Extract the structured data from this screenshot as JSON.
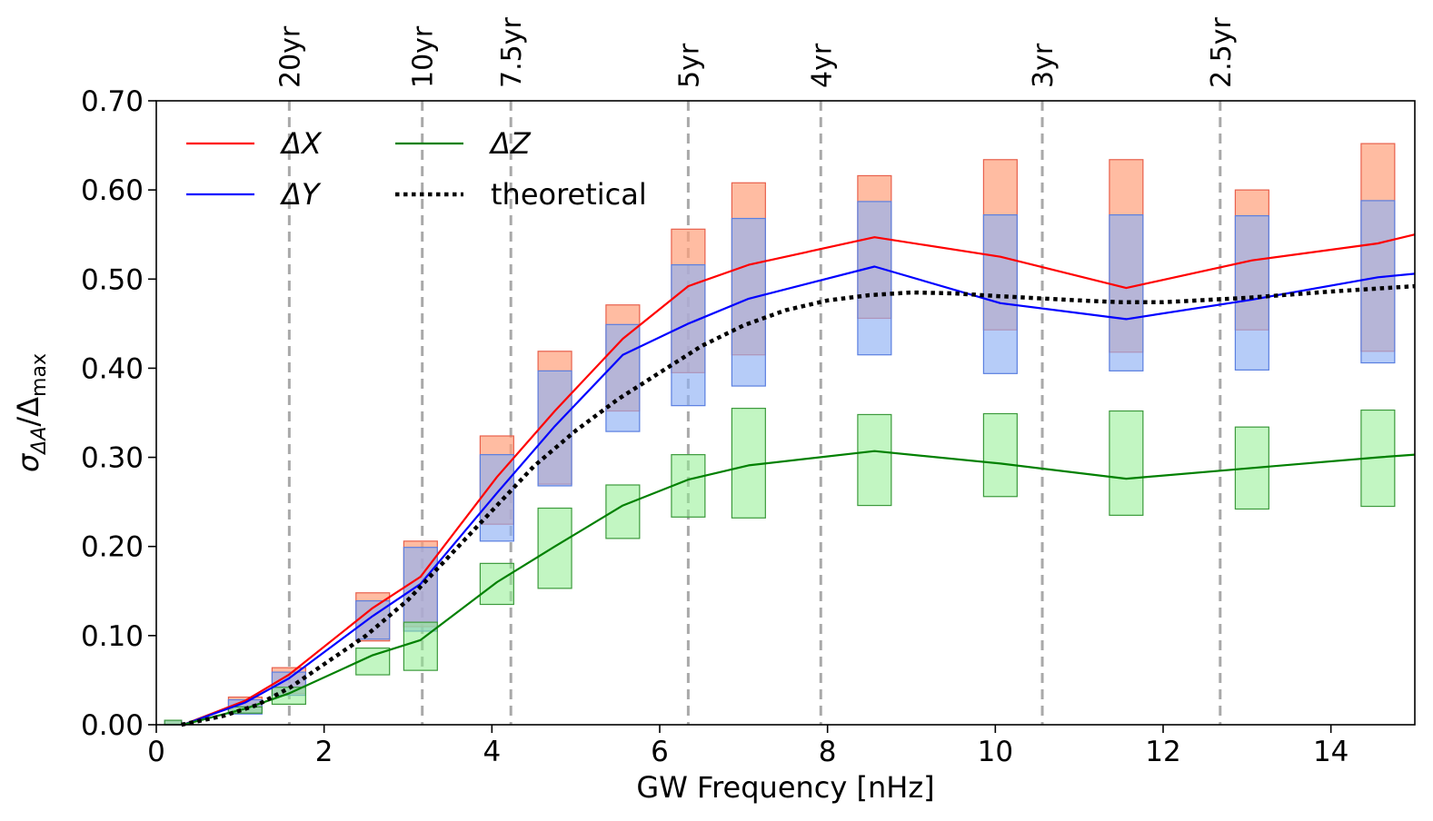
{
  "chart_data": {
    "type": "line",
    "title": "",
    "xlabel": "GW Frequency [nHz]",
    "ylabel": "σ_ΔA/Δ_max",
    "ylabel_parts": {
      "sigma": "σ",
      "sub": "ΔA",
      "slash": "/Δ",
      "max": "max"
    },
    "xlim": [
      0,
      15
    ],
    "ylim": [
      0,
      0.7
    ],
    "xticks": [
      0,
      2,
      4,
      6,
      8,
      10,
      12,
      14
    ],
    "xtick_labels": [
      "0",
      "2",
      "4",
      "6",
      "8",
      "10",
      "12",
      "14"
    ],
    "yticks": [
      0,
      0.1,
      0.2,
      0.3,
      0.4,
      0.5,
      0.6,
      0.7
    ],
    "ytick_labels": [
      "0.00",
      "0.10",
      "0.20",
      "0.30",
      "0.40",
      "0.50",
      "0.60",
      "0.70"
    ],
    "period_lines": [
      {
        "label": "20yr",
        "x": 1.585
      },
      {
        "label": "10yr",
        "x": 3.17
      },
      {
        "label": "7.5yr",
        "x": 4.226
      },
      {
        "label": "5yr",
        "x": 6.34
      },
      {
        "label": "4yr",
        "x": 7.92
      },
      {
        "label": "3yr",
        "x": 10.56
      },
      {
        "label": "2.5yr",
        "x": 12.68
      }
    ],
    "legend": {
      "position": "upper-left",
      "entries": [
        {
          "key": "dx",
          "label": "ΔX",
          "color": "#ff0000",
          "style": "solid"
        },
        {
          "key": "dy",
          "label": "ΔY",
          "color": "#0000ff",
          "style": "solid"
        },
        {
          "key": "dz",
          "label": "ΔZ",
          "color": "#008000",
          "style": "solid"
        },
        {
          "key": "theory",
          "label": "theoretical",
          "color": "#000000",
          "style": "dotted"
        }
      ]
    },
    "series": [
      {
        "name": "ΔX",
        "key": "dx",
        "color": "#ff0000",
        "x": [
          0.32,
          1.06,
          1.58,
          2.58,
          3.15,
          4.06,
          4.75,
          5.56,
          6.34,
          7.06,
          8.56,
          10.06,
          11.56,
          13.06,
          14.56,
          15.0
        ],
        "y": [
          0.0,
          0.027,
          0.056,
          0.131,
          0.166,
          0.278,
          0.352,
          0.433,
          0.492,
          0.516,
          0.547,
          0.525,
          0.49,
          0.521,
          0.54,
          0.55
        ]
      },
      {
        "name": "ΔY",
        "key": "dy",
        "color": "#0000ff",
        "x": [
          0.32,
          1.06,
          1.58,
          2.58,
          3.15,
          4.06,
          4.75,
          5.56,
          6.34,
          7.06,
          8.56,
          10.06,
          11.56,
          13.06,
          14.56,
          15.0
        ],
        "y": [
          0.0,
          0.025,
          0.052,
          0.122,
          0.158,
          0.26,
          0.335,
          0.415,
          0.45,
          0.478,
          0.514,
          0.473,
          0.455,
          0.477,
          0.502,
          0.506
        ]
      },
      {
        "name": "ΔZ",
        "key": "dz",
        "color": "#008000",
        "x": [
          0.32,
          1.06,
          1.58,
          2.58,
          3.15,
          4.06,
          4.75,
          5.56,
          6.34,
          7.06,
          8.56,
          10.06,
          11.56,
          13.06,
          14.56,
          15.0
        ],
        "y": [
          0.0,
          0.018,
          0.035,
          0.078,
          0.095,
          0.16,
          0.2,
          0.246,
          0.275,
          0.291,
          0.307,
          0.293,
          0.276,
          0.288,
          0.3,
          0.303
        ]
      },
      {
        "name": "theoretical",
        "key": "theory",
        "color": "#000000",
        "x": [
          0.3,
          0.8,
          1.2,
          1.6,
          2.0,
          2.5,
          3.0,
          3.5,
          4.0,
          4.5,
          5.0,
          5.5,
          6.0,
          6.5,
          7.0,
          7.5,
          8.0,
          8.5,
          9.0,
          9.5,
          10.0,
          11.0,
          11.5,
          12.0,
          13.0,
          14.0,
          15.0
        ],
        "y": [
          0.0,
          0.01,
          0.022,
          0.042,
          0.068,
          0.1,
          0.14,
          0.19,
          0.24,
          0.29,
          0.33,
          0.365,
          0.395,
          0.425,
          0.448,
          0.465,
          0.476,
          0.482,
          0.485,
          0.484,
          0.481,
          0.476,
          0.474,
          0.474,
          0.479,
          0.486,
          0.492
        ]
      }
    ],
    "error_boxes": [
      {
        "key": "dx",
        "fill": "#ffa07a",
        "edge": "#e8604c",
        "alpha": 0.7,
        "boxes": [
          [
            0.1,
            0.3,
            0.0,
            0.005
          ],
          [
            0.86,
            1.26,
            0.013,
            0.031
          ],
          [
            1.38,
            1.78,
            0.035,
            0.064
          ],
          [
            2.38,
            2.78,
            0.094,
            0.148
          ],
          [
            2.95,
            3.35,
            0.11,
            0.206
          ],
          [
            3.86,
            4.26,
            0.225,
            0.324
          ],
          [
            4.55,
            4.95,
            0.27,
            0.419
          ],
          [
            5.36,
            5.76,
            0.352,
            0.471
          ],
          [
            6.14,
            6.54,
            0.395,
            0.556
          ],
          [
            6.86,
            7.26,
            0.415,
            0.608
          ],
          [
            8.36,
            8.76,
            0.456,
            0.616
          ],
          [
            9.86,
            10.26,
            0.443,
            0.634
          ],
          [
            11.36,
            11.76,
            0.418,
            0.634
          ],
          [
            12.86,
            13.26,
            0.443,
            0.6
          ],
          [
            14.36,
            14.76,
            0.419,
            0.652
          ]
        ]
      },
      {
        "key": "dy",
        "fill": "#8fb0f5",
        "edge": "#5a7fe0",
        "alpha": 0.65,
        "boxes": [
          [
            0.1,
            0.3,
            0.0,
            0.005
          ],
          [
            0.86,
            1.26,
            0.012,
            0.028
          ],
          [
            1.38,
            1.78,
            0.033,
            0.059
          ],
          [
            2.38,
            2.78,
            0.096,
            0.139
          ],
          [
            2.95,
            3.35,
            0.105,
            0.199
          ],
          [
            3.86,
            4.26,
            0.206,
            0.303
          ],
          [
            4.55,
            4.95,
            0.268,
            0.397
          ],
          [
            5.36,
            5.76,
            0.329,
            0.449
          ],
          [
            6.14,
            6.54,
            0.358,
            0.516
          ],
          [
            6.86,
            7.26,
            0.38,
            0.568
          ],
          [
            8.36,
            8.76,
            0.415,
            0.587
          ],
          [
            9.86,
            10.26,
            0.394,
            0.572
          ],
          [
            11.36,
            11.76,
            0.397,
            0.572
          ],
          [
            12.86,
            13.26,
            0.398,
            0.571
          ],
          [
            14.36,
            14.76,
            0.406,
            0.588
          ]
        ]
      },
      {
        "key": "dz",
        "fill": "#90ee90",
        "edge": "#3c9a3c",
        "alpha": 0.55,
        "boxes": [
          [
            0.1,
            0.3,
            0.0,
            0.005
          ],
          [
            0.86,
            1.26,
            0.013,
            0.02
          ],
          [
            1.38,
            1.78,
            0.023,
            0.042
          ],
          [
            2.38,
            2.78,
            0.056,
            0.086
          ],
          [
            2.95,
            3.35,
            0.061,
            0.115
          ],
          [
            3.86,
            4.26,
            0.135,
            0.181
          ],
          [
            4.55,
            4.95,
            0.153,
            0.243
          ],
          [
            5.36,
            5.76,
            0.209,
            0.269
          ],
          [
            6.14,
            6.54,
            0.233,
            0.303
          ],
          [
            6.86,
            7.26,
            0.232,
            0.355
          ],
          [
            8.36,
            8.76,
            0.246,
            0.348
          ],
          [
            9.86,
            10.26,
            0.256,
            0.349
          ],
          [
            11.36,
            11.76,
            0.235,
            0.352
          ],
          [
            12.86,
            13.26,
            0.242,
            0.334
          ],
          [
            14.36,
            14.76,
            0.245,
            0.353
          ]
        ]
      }
    ],
    "grid": false
  }
}
